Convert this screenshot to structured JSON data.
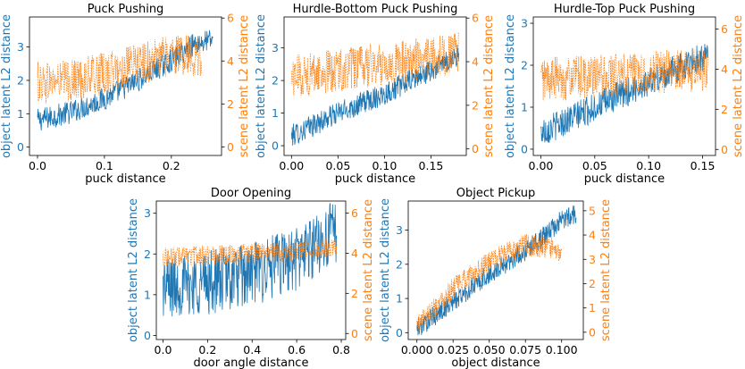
{
  "colors": {
    "object": "#1f77b4",
    "scene": "#ff7f0e"
  },
  "chart_data": [
    {
      "type": "line",
      "title": "Puck Pushing",
      "xlabel": "puck distance",
      "ylabel_left": "object latent L2 distance",
      "ylabel_right": "scene latent L2 distance",
      "xlim": [
        -0.012,
        0.275
      ],
      "ylim_left": [
        -0.25,
        3.9
      ],
      "ylim_right": [
        -0.4,
        6.05
      ],
      "xticks": [
        0.0,
        0.1,
        0.2
      ],
      "xtick_labels": [
        "0.0",
        "0.1",
        "0.2"
      ],
      "yticks_left": [
        0,
        1,
        2,
        3
      ],
      "yticks_right": [
        0,
        2,
        4,
        6
      ],
      "series": [
        {
          "name": "object latent L2 distance",
          "axis": "left",
          "style": "solid",
          "trend": [
            [
              0.0,
              0.8
            ],
            [
              0.05,
              1.05
            ],
            [
              0.1,
              1.45
            ],
            [
              0.15,
              2.0
            ],
            [
              0.2,
              2.6
            ],
            [
              0.235,
              3.1
            ],
            [
              0.26,
              3.2
            ]
          ],
          "spread": 0.35,
          "x_span": [
            0.0,
            0.262
          ]
        },
        {
          "name": "scene latent L2 distance",
          "axis": "right",
          "style": "dotted",
          "trend": [
            [
              0.0,
              3.0
            ],
            [
              0.05,
              3.1
            ],
            [
              0.1,
              3.4
            ],
            [
              0.15,
              3.8
            ],
            [
              0.2,
              4.3
            ],
            [
              0.24,
              4.3
            ]
          ],
          "spread": 1.0,
          "x_span": [
            0.0,
            0.245
          ]
        }
      ]
    },
    {
      "type": "line",
      "title": "Hurdle-Bottom Puck Pushing",
      "xlabel": "puck distance",
      "ylabel_left": "object latent L2 distance",
      "ylabel_right": "scene latent L2 distance",
      "xlim": [
        -0.008,
        0.188
      ],
      "ylim_left": [
        -0.3,
        3.95
      ],
      "ylim_right": [
        -0.3,
        6.05
      ],
      "xticks": [
        0.0,
        0.05,
        0.1,
        0.15
      ],
      "xtick_labels": [
        "0.00",
        "0.05",
        "0.10",
        "0.15"
      ],
      "yticks_left": [
        0,
        1,
        2,
        3
      ],
      "yticks_right": [
        0,
        2,
        4,
        6
      ],
      "series": [
        {
          "name": "object latent L2 distance",
          "axis": "left",
          "style": "solid",
          "trend": [
            [
              0.0,
              0.3
            ],
            [
              0.05,
              1.0
            ],
            [
              0.1,
              1.6
            ],
            [
              0.15,
              2.3
            ],
            [
              0.18,
              2.8
            ]
          ],
          "spread": 0.35,
          "x_span": [
            0.0,
            0.18
          ]
        },
        {
          "name": "scene latent L2 distance",
          "axis": "right",
          "style": "dotted",
          "trend": [
            [
              0.0,
              3.3
            ],
            [
              0.05,
              3.6
            ],
            [
              0.1,
              3.9
            ],
            [
              0.15,
              4.2
            ],
            [
              0.18,
              4.4
            ]
          ],
          "spread": 1.0,
          "x_span": [
            0.0,
            0.18
          ]
        }
      ]
    },
    {
      "type": "line",
      "title": "Hurdle-Top Puck Pushing",
      "xlabel": "puck distance",
      "ylabel_left": "object latent L2 distance",
      "ylabel_right": "scene latent L2 distance",
      "xlim": [
        -0.007,
        0.162
      ],
      "ylim_left": [
        -0.15,
        3.15
      ],
      "ylim_right": [
        -0.3,
        6.6
      ],
      "xticks": [
        0.0,
        0.05,
        0.1,
        0.15
      ],
      "xtick_labels": [
        "0.00",
        "0.05",
        "0.10",
        "0.15"
      ],
      "yticks_left": [
        0,
        1,
        2,
        3
      ],
      "yticks_right": [
        0,
        2,
        4,
        6
      ],
      "series": [
        {
          "name": "object latent L2 distance",
          "axis": "left",
          "style": "solid",
          "trend": [
            [
              0.0,
              0.4
            ],
            [
              0.05,
              1.0
            ],
            [
              0.1,
              1.6
            ],
            [
              0.15,
              2.2
            ]
          ],
          "spread": 0.35,
          "x_span": [
            0.0,
            0.155
          ]
        },
        {
          "name": "scene latent L2 distance",
          "axis": "right",
          "style": "dotted",
          "trend": [
            [
              0.0,
              3.5
            ],
            [
              0.05,
              3.6
            ],
            [
              0.1,
              3.8
            ],
            [
              0.15,
              4.0
            ]
          ],
          "spread": 1.1,
          "x_span": [
            0.0,
            0.155
          ]
        }
      ]
    },
    {
      "type": "line",
      "title": "Door Opening",
      "xlabel": "door angle distance",
      "ylabel_left": "object latent L2 distance",
      "ylabel_right": "scene latent L2 distance",
      "xlim": [
        -0.03,
        0.82
      ],
      "ylim_left": [
        -0.1,
        3.3
      ],
      "ylim_right": [
        -0.3,
        6.6
      ],
      "xticks": [
        0.0,
        0.2,
        0.4,
        0.6,
        0.8
      ],
      "xtick_labels": [
        "0.0",
        "0.2",
        "0.4",
        "0.6",
        "0.8"
      ],
      "yticks_left": [
        0,
        1,
        2,
        3
      ],
      "yticks_right": [
        0,
        2,
        4,
        6
      ],
      "series": [
        {
          "name": "object latent L2 distance",
          "axis": "left",
          "style": "solid",
          "trend": [
            [
              0.0,
              1.2
            ],
            [
              0.2,
              1.3
            ],
            [
              0.4,
              1.5
            ],
            [
              0.6,
              1.9
            ],
            [
              0.78,
              2.6
            ]
          ],
          "spread": 0.8,
          "x_span": [
            0.0,
            0.78
          ]
        },
        {
          "name": "scene latent L2 distance",
          "axis": "right",
          "style": "dotted",
          "trend": [
            [
              0.0,
              3.8
            ],
            [
              0.2,
              3.9
            ],
            [
              0.4,
              4.0
            ],
            [
              0.6,
              4.1
            ],
            [
              0.78,
              4.3
            ]
          ],
          "spread": 0.5,
          "x_span": [
            0.0,
            0.78
          ]
        }
      ]
    },
    {
      "type": "line",
      "title": "Object Pickup",
      "xlabel": "object distance",
      "ylabel_left": "object latent L2 distance",
      "ylabel_right": "scene latent L2 distance",
      "xlim": [
        -0.006,
        0.115
      ],
      "ylim_left": [
        -0.2,
        3.85
      ],
      "ylim_right": [
        -0.3,
        5.4
      ],
      "xticks": [
        0.0,
        0.025,
        0.05,
        0.075,
        0.1
      ],
      "xtick_labels": [
        "0.000",
        "0.025",
        "0.050",
        "0.075",
        "0.100"
      ],
      "yticks_left": [
        0,
        1,
        2,
        3
      ],
      "yticks_right": [
        0,
        1,
        2,
        3,
        4,
        5
      ],
      "series": [
        {
          "name": "object latent L2 distance",
          "axis": "left",
          "style": "solid",
          "trend": [
            [
              0.0,
              0.1
            ],
            [
              0.025,
              0.9
            ],
            [
              0.05,
              1.7
            ],
            [
              0.075,
              2.4
            ],
            [
              0.09,
              2.9
            ],
            [
              0.1,
              3.3
            ],
            [
              0.11,
              3.5
            ]
          ],
          "spread": 0.3,
          "x_span": [
            0.0,
            0.11
          ]
        },
        {
          "name": "scene latent L2 distance",
          "axis": "right",
          "style": "dotted",
          "trend": [
            [
              0.0,
              0.3
            ],
            [
              0.025,
              1.8
            ],
            [
              0.05,
              2.9
            ],
            [
              0.075,
              3.6
            ],
            [
              0.09,
              3.5
            ],
            [
              0.1,
              3.2
            ]
          ],
          "spread": 0.45,
          "x_span": [
            0.0,
            0.1
          ]
        }
      ]
    }
  ]
}
